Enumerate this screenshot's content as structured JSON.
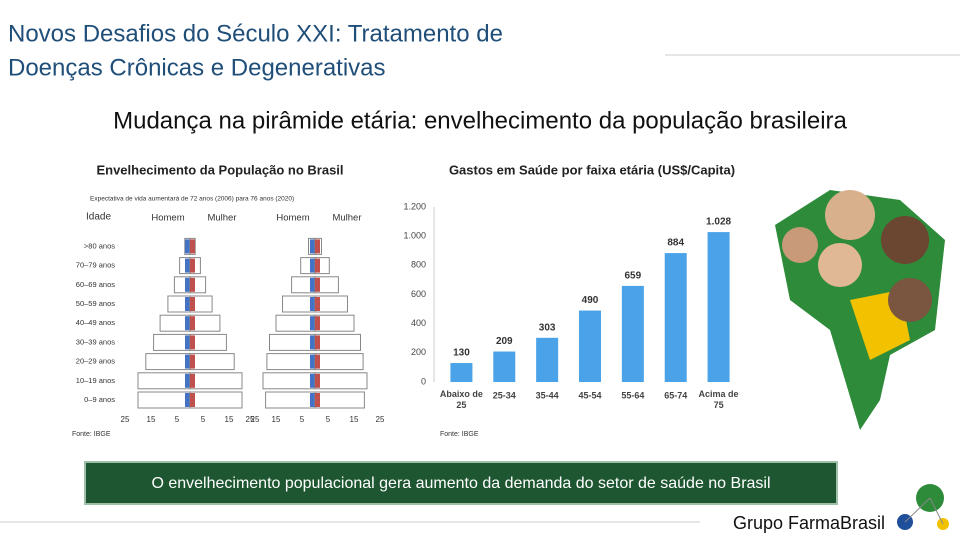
{
  "header": {
    "title_line1": "Novos Desafios do Século XXI: Tratamento de",
    "title_line2": "Doenças Crônicas e Degenerativas",
    "subtitle": "Mudança na pirâmide etária: envelhecimento da população brasileira"
  },
  "chart_data": [
    {
      "type": "pyramid",
      "title": "Envelhecimento da População no Brasil",
      "subtitle": "Expectativa de vida aumentará de 72 anos (2006) para 76 anos (2020)",
      "y_label": "Idade",
      "note": "Fonte: IBGE",
      "categories": [
        "0–9 anos",
        "10–19 anos",
        "20–29 anos",
        "30–39 anos",
        "40–49 anos",
        "50–59 anos",
        "60–69 anos",
        "70–79 anos",
        ">80 anos"
      ],
      "series": [
        {
          "name": "Homem",
          "color": "#4472c4",
          "values": [
            20,
            20,
            17,
            14,
            11.5,
            8.5,
            6,
            4,
            2
          ]
        },
        {
          "name": "Mulher",
          "color": "#c0504d",
          "values": [
            20,
            20,
            17,
            14,
            11.5,
            8.5,
            6,
            4,
            2
          ]
        }
      ],
      "xlim": [
        -25,
        25
      ],
      "xticks": [
        {
          "value": -25,
          "label": "25"
        },
        {
          "value": -15,
          "label": "15"
        },
        {
          "value": -5,
          "label": "5"
        },
        5,
        15,
        25
      ]
    },
    {
      "type": "pyramid",
      "series": [
        {
          "name": "Homem",
          "color": "#4472c4",
          "values": [
            19,
            20,
            18.5,
            17.5,
            15,
            12.5,
            9,
            5.5,
            2.5
          ]
        },
        {
          "name": "Mulher",
          "color": "#c0504d",
          "values": [
            19,
            20,
            18.5,
            17.5,
            15,
            12.5,
            9,
            5.5,
            2.5
          ]
        }
      ],
      "xlim": [
        -25,
        25
      ],
      "xticks": [
        {
          "value": -25,
          "label": "25"
        },
        {
          "value": -15,
          "label": "15"
        },
        {
          "value": -5,
          "label": "5"
        },
        5,
        15,
        25
      ]
    },
    {
      "type": "bar",
      "title": "Gastos em Saúde por faixa etária (US$/Capita)",
      "note": "Fonte: IBGE",
      "categories": [
        "Abaixo de 25",
        "25-34",
        "35-44",
        "45-54",
        "55-64",
        "65-74",
        "Acima de 75"
      ],
      "values": [
        130,
        209,
        303,
        490,
        659,
        884,
        1028
      ],
      "value_labels": [
        "130",
        "209",
        "303",
        "490",
        "659",
        "884",
        "1.028"
      ],
      "color": "#4aa3e8",
      "ylim": [
        0,
        1200
      ],
      "yticks": [
        0,
        200,
        400,
        600,
        800,
        {
          "value": 1000,
          "label": "1.000"
        },
        {
          "value": 1200,
          "label": "1.200"
        }
      ]
    }
  ],
  "banner": "O envelhecimento populacional gera aumento da demanda do setor de saúde no Brasil",
  "logo": "Grupo FarmaBrasil"
}
